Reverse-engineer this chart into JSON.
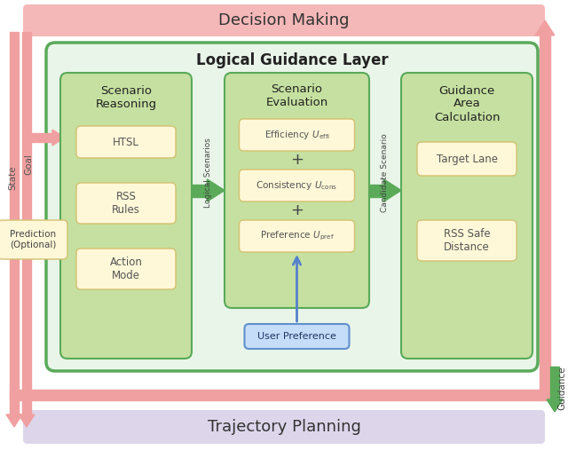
{
  "bg_color": "#ffffff",
  "decision_making_color": "#f5b8b8",
  "trajectory_planning_color": "#ddd5ea",
  "outer_box_fill": "#eaf5ea",
  "outer_box_edge": "#5aaa5a",
  "inner_box_fill": "#c5e0a0",
  "inner_box_edge": "#5aaa5a",
  "sub_box_fill": "#fef8d8",
  "sub_box_edge": "#d4c070",
  "user_pref_fill": "#c5ddf8",
  "user_pref_edge": "#6090cc",
  "arrow_pink": "#f0a0a0",
  "arrow_green": "#5aaa5a",
  "arrow_blue": "#5580cc",
  "title_dm": "Decision Making",
  "title_tp": "Trajectory Planning",
  "title_lgl": "Logical Guidance Layer",
  "title_sr": "Scenario\nReasoning",
  "title_se": "Scenario\nEvaluation",
  "title_ga": "Guidance\nArea\nCalculation",
  "label_htsl": "HTSL",
  "label_rss": "RSS\nRules",
  "label_action": "Action\nMode",
  "label_efficiency": "Efficiency $\\mathit{U}_{\\mathrm{effi}}$",
  "label_consistency": "Consistency $\\mathit{U}_{\\mathrm{cons}}$",
  "label_preference": "Preference $\\mathit{U}_{\\mathrm{pref}}$",
  "label_target_lane": "Target Lane",
  "label_rss_safe": "RSS Safe\nDistance",
  "label_user_pref": "User Preference",
  "label_logical_scenarios": "Logical Scenarios",
  "label_candidate_scenario": "Candidate Scenario",
  "label_guidance": "Guidance",
  "label_state": "State",
  "label_goal": "Goal",
  "label_prediction": "Prediction\n(Optional)"
}
